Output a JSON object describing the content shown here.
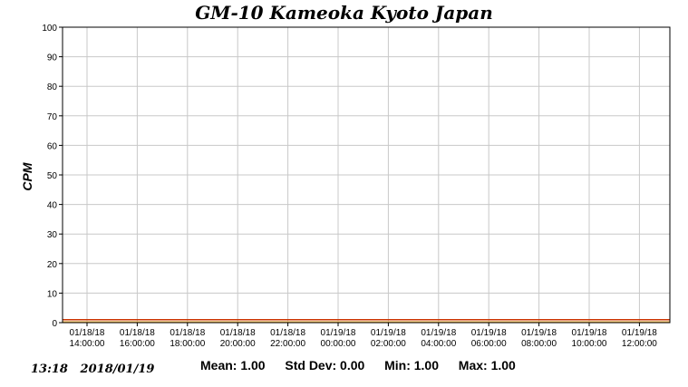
{
  "chart_data": {
    "type": "line",
    "title": "GM-10 Kameoka Kyoto Japan",
    "ylabel": "CPM",
    "xlabel": "",
    "ylim": [
      0,
      100
    ],
    "yticks": [
      0,
      10,
      20,
      30,
      40,
      50,
      60,
      70,
      80,
      90,
      100
    ],
    "xtick_labels": [
      [
        "01/18/18",
        "14:00:00"
      ],
      [
        "01/18/18",
        "16:00:00"
      ],
      [
        "01/18/18",
        "18:00:00"
      ],
      [
        "01/18/18",
        "20:00:00"
      ],
      [
        "01/18/18",
        "22:00:00"
      ],
      [
        "01/19/18",
        "00:00:00"
      ],
      [
        "01/19/18",
        "02:00:00"
      ],
      [
        "01/19/18",
        "04:00:00"
      ],
      [
        "01/19/18",
        "06:00:00"
      ],
      [
        "01/19/18",
        "08:00:00"
      ],
      [
        "01/19/18",
        "10:00:00"
      ],
      [
        "01/19/18",
        "12:00:00"
      ]
    ],
    "grid": true,
    "series": [
      {
        "values": [
          1,
          1
        ],
        "color": "#cc3300"
      }
    ],
    "baseline_color": "#e8b04a"
  },
  "footer": {
    "timestamp": "13:18   2018/01/19",
    "mean": "Mean: 1.00",
    "std_dev": "Std Dev: 0.00",
    "min": "Min: 1.00",
    "max": "Max: 1.00"
  }
}
